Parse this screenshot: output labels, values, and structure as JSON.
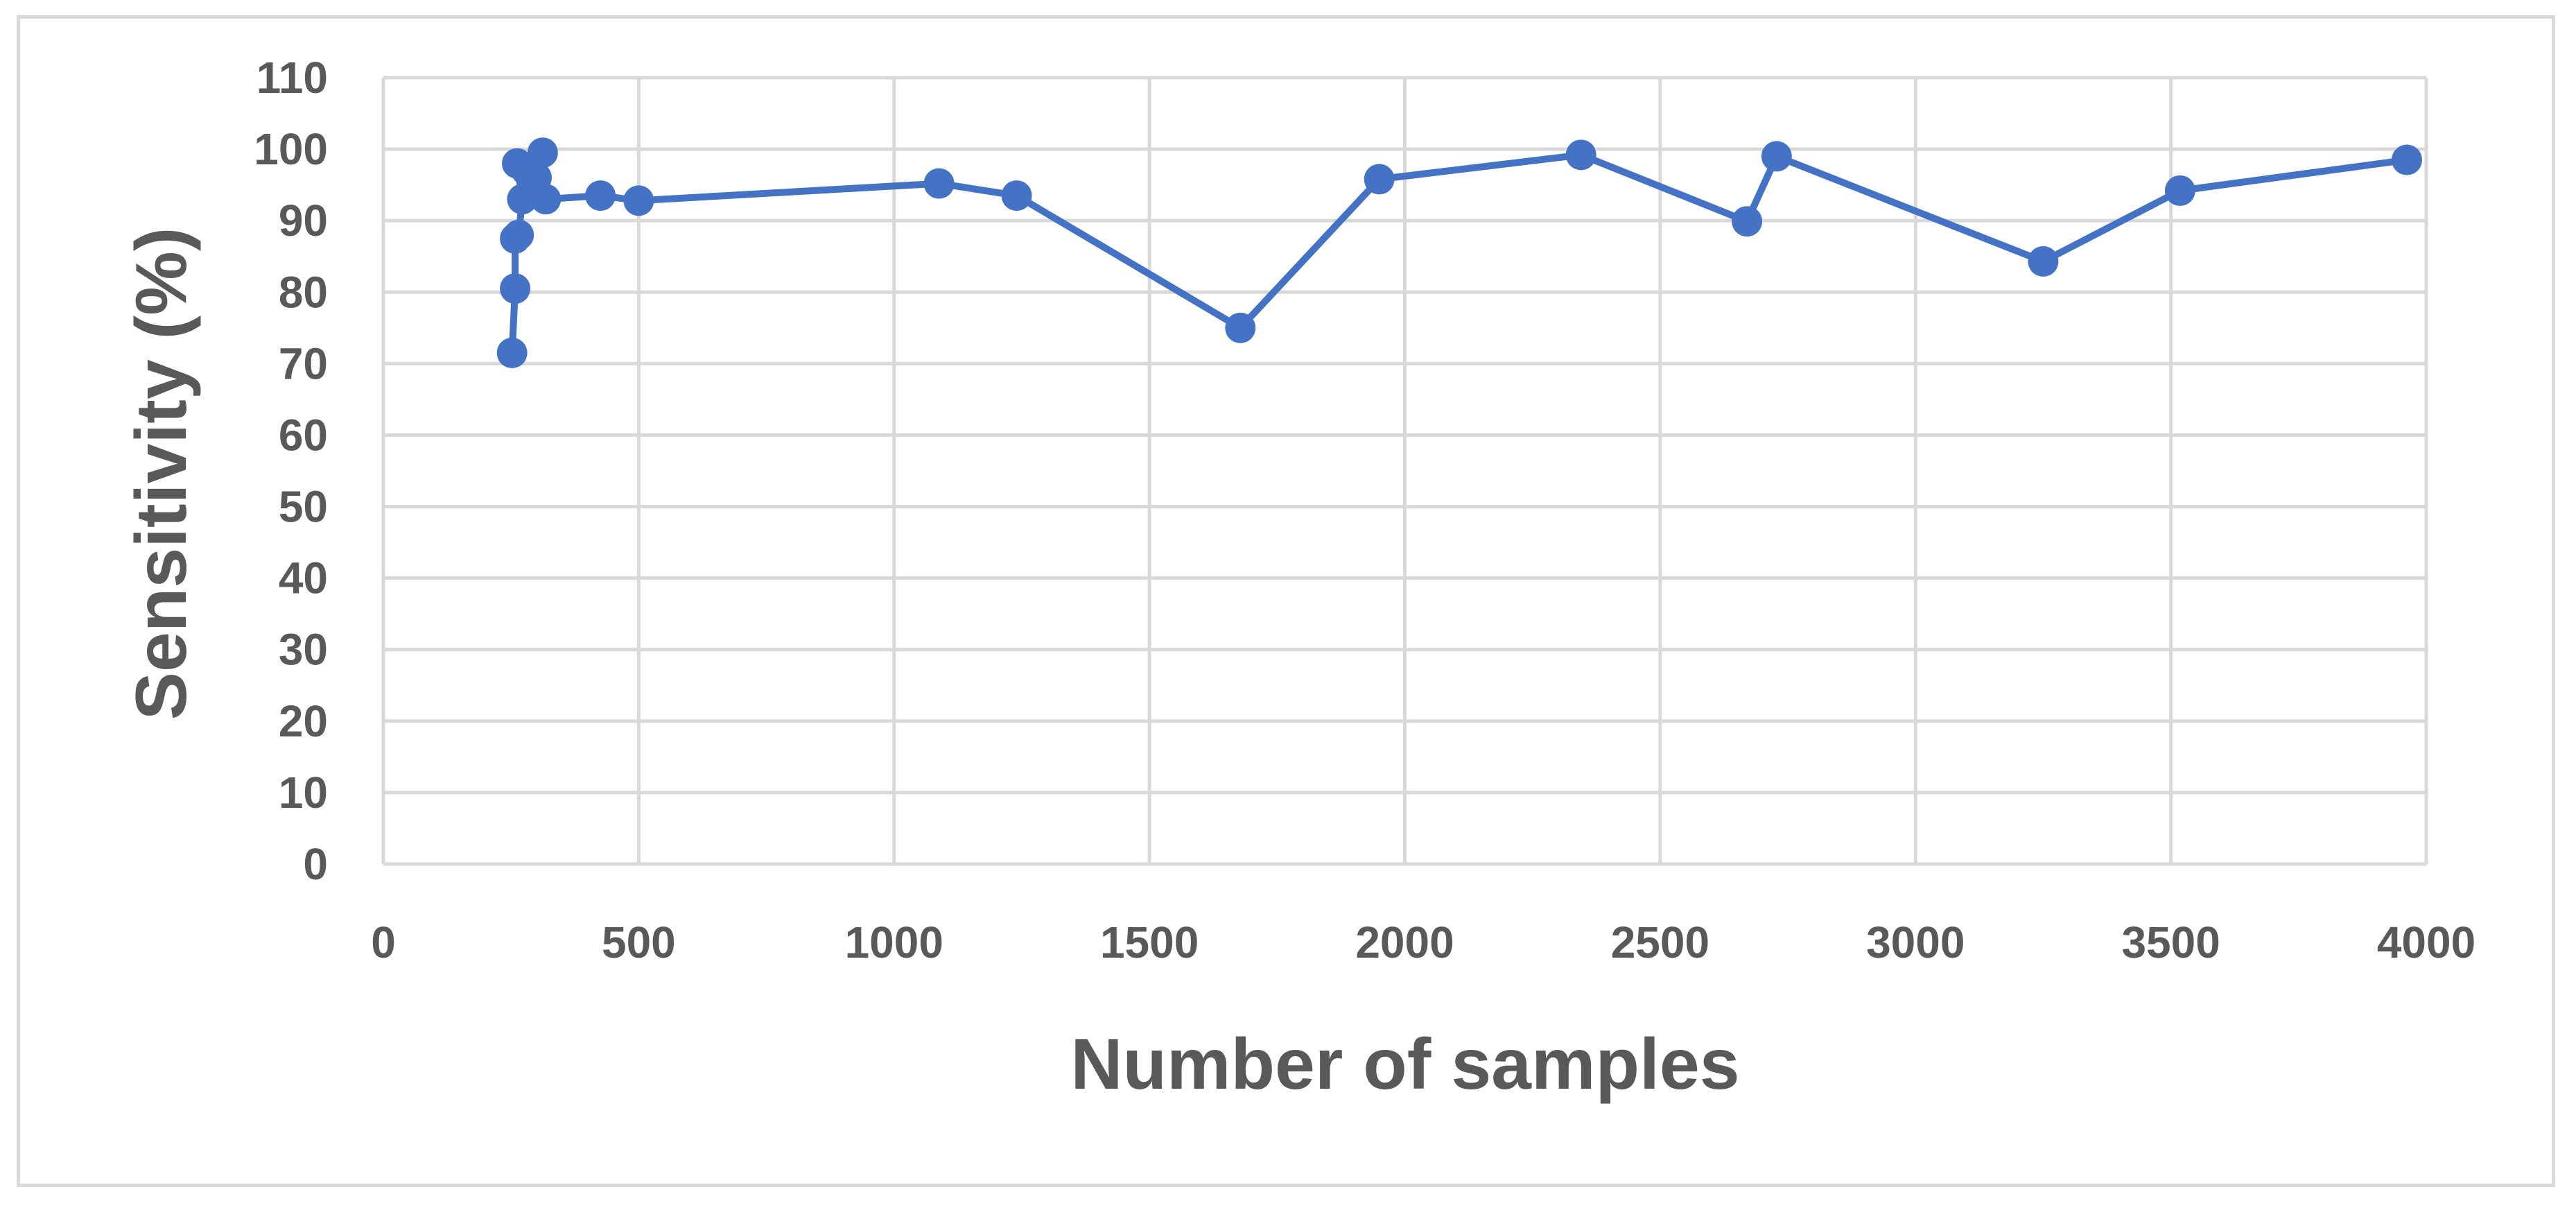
{
  "chart_data": {
    "type": "scatter",
    "title": "",
    "xlabel": "Number of samples",
    "ylabel": "Sensitivity (%)",
    "xlim": [
      0,
      4000
    ],
    "ylim": [
      0,
      110
    ],
    "x_ticks": [
      0,
      500,
      1000,
      1500,
      2000,
      2500,
      3000,
      3500,
      4000
    ],
    "y_ticks": [
      0,
      10,
      20,
      30,
      40,
      50,
      60,
      70,
      80,
      90,
      100,
      110
    ],
    "grid": true,
    "legend": "none",
    "colors": {
      "series": "#4472c4",
      "grid": "#d9d9d9",
      "text": "#595959"
    },
    "series": [
      {
        "marker": "circle",
        "line": true,
        "points": [
          [
            252,
            71.5
          ],
          [
            258,
            80.5
          ],
          [
            258,
            87.5
          ],
          [
            265,
            88
          ],
          [
            272,
            93
          ],
          [
            262,
            98
          ],
          [
            280,
            97
          ],
          [
            300,
            96
          ],
          [
            312,
            99.5
          ],
          [
            318,
            93
          ],
          [
            425,
            93.5
          ],
          [
            500,
            92.8
          ],
          [
            1088,
            95.2
          ],
          [
            1240,
            93.5
          ],
          [
            1678,
            75
          ],
          [
            1950,
            95.8
          ],
          [
            2345,
            99.2
          ],
          [
            2670,
            89.9
          ],
          [
            2728,
            99
          ],
          [
            3250,
            84.3
          ],
          [
            3518,
            94.2
          ],
          [
            3962,
            98.5
          ]
        ]
      }
    ]
  }
}
